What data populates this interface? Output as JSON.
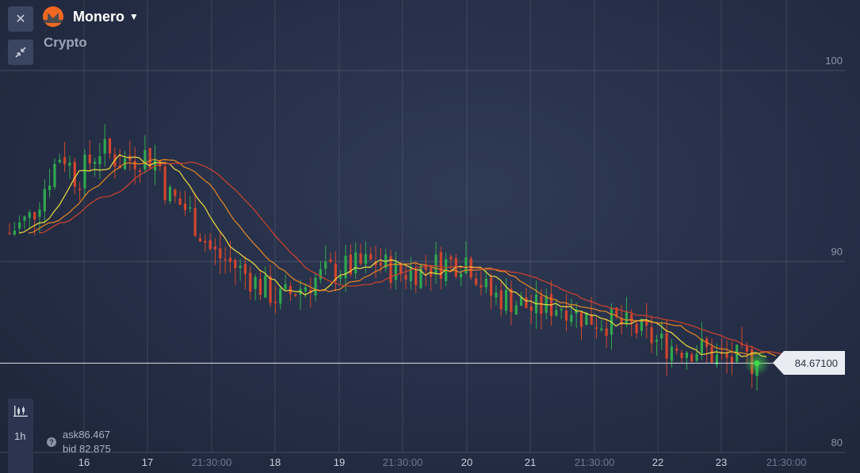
{
  "header": {
    "asset_name": "Monero",
    "category": "Crypto",
    "close_icon": "close-icon",
    "minimize_icon": "collapse-icon",
    "caret_icon": "chevron-down-icon"
  },
  "price_levels": [
    "100",
    "90",
    "80"
  ],
  "current_price": "84.67100",
  "quote": {
    "ask": "ask86.467",
    "bid": "bid 82.875",
    "help_glyph": "?"
  },
  "timeframe": "1h",
  "x_ticks": [
    {
      "label": "16",
      "kind": "day"
    },
    {
      "label": "17",
      "kind": "day"
    },
    {
      "label": "21:30:00",
      "kind": "time"
    },
    {
      "label": "18",
      "kind": "day"
    },
    {
      "label": "19",
      "kind": "day"
    },
    {
      "label": "21:30:00",
      "kind": "time"
    },
    {
      "label": "20",
      "kind": "day"
    },
    {
      "label": "21",
      "kind": "day"
    },
    {
      "label": "21:30:00",
      "kind": "time"
    },
    {
      "label": "22",
      "kind": "day"
    },
    {
      "label": "23",
      "kind": "day"
    },
    {
      "label": "21:30:00",
      "kind": "time"
    }
  ],
  "colors": {
    "up": "#2fa84f",
    "down": "#d2452d",
    "ma_fast": "#f6e33f",
    "ma_mid": "#f08c22",
    "ma_slow": "#d9432f",
    "current_marker": "#3ddc4a"
  },
  "chart_data": {
    "type": "candlestick",
    "y_range": [
      80,
      100
    ],
    "y_ticks": [
      100,
      90,
      80
    ],
    "current": 84.671,
    "moving_averages": [
      "fast",
      "mid",
      "slow"
    ],
    "path": [
      [
        0,
        91.5
      ],
      [
        0.03,
        92.4
      ],
      [
        0.05,
        94.2
      ],
      [
        0.07,
        95.8
      ],
      [
        0.09,
        94.3
      ],
      [
        0.12,
        95.9
      ],
      [
        0.15,
        95.2
      ],
      [
        0.18,
        95.6
      ],
      [
        0.2,
        95.2
      ],
      [
        0.21,
        93.6
      ],
      [
        0.24,
        92.6
      ],
      [
        0.27,
        90.5
      ],
      [
        0.3,
        89.8
      ],
      [
        0.33,
        88.9
      ],
      [
        0.36,
        88.0
      ],
      [
        0.38,
        88.4
      ],
      [
        0.4,
        88.9
      ],
      [
        0.43,
        89.5
      ],
      [
        0.46,
        89.7
      ],
      [
        0.49,
        90.0
      ],
      [
        0.52,
        89.4
      ],
      [
        0.55,
        89.6
      ],
      [
        0.58,
        89.9
      ],
      [
        0.6,
        90.0
      ],
      [
        0.61,
        90.2
      ],
      [
        0.62,
        89.7
      ],
      [
        0.64,
        88.3
      ],
      [
        0.67,
        88.0
      ],
      [
        0.7,
        87.5
      ],
      [
        0.73,
        87.7
      ],
      [
        0.75,
        87.7
      ],
      [
        0.76,
        87.2
      ],
      [
        0.79,
        86.9
      ],
      [
        0.81,
        86.8
      ],
      [
        0.84,
        86.4
      ],
      [
        0.87,
        85.7
      ],
      [
        0.9,
        85.5
      ],
      [
        0.93,
        85.4
      ],
      [
        0.95,
        84.8
      ],
      [
        0.98,
        84.9
      ],
      [
        1.0,
        84.67
      ]
    ]
  }
}
